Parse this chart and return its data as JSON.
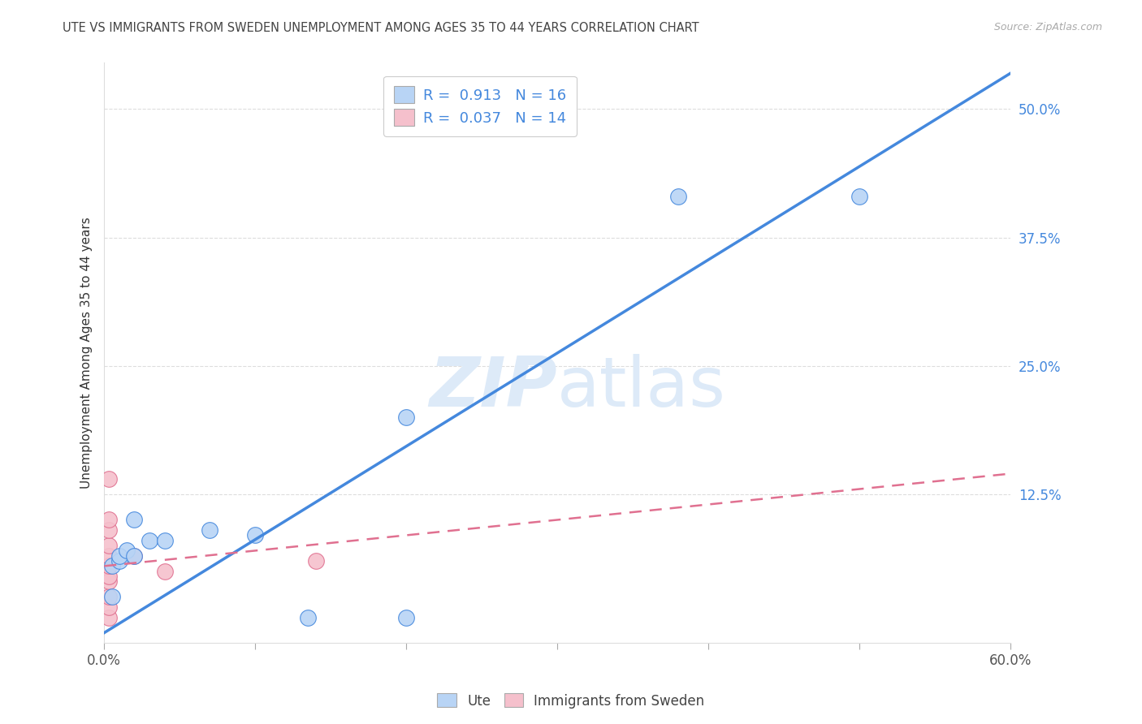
{
  "title": "UTE VS IMMIGRANTS FROM SWEDEN UNEMPLOYMENT AMONG AGES 35 TO 44 YEARS CORRELATION CHART",
  "source": "Source: ZipAtlas.com",
  "ylabel": "Unemployment Among Ages 35 to 44 years",
  "xmin": 0.0,
  "xmax": 0.6,
  "ymin": -0.02,
  "ymax": 0.545,
  "yticks": [
    0.0,
    0.125,
    0.25,
    0.375,
    0.5
  ],
  "ytick_labels": [
    "",
    "12.5%",
    "25.0%",
    "37.5%",
    "50.0%"
  ],
  "xticks": [
    0.0,
    0.1,
    0.2,
    0.3,
    0.4,
    0.5,
    0.6
  ],
  "blue_R": "0.913",
  "blue_N": "16",
  "pink_R": "0.037",
  "pink_N": "14",
  "blue_color": "#b8d4f5",
  "blue_line_color": "#4488dd",
  "pink_color": "#f5c0cc",
  "pink_line_color": "#e07090",
  "watermark_color": "#ddeaf8",
  "legend_label_blue": "Ute",
  "legend_label_pink": "Immigrants from Sweden",
  "blue_scatter_x": [
    0.005,
    0.005,
    0.01,
    0.01,
    0.015,
    0.02,
    0.02,
    0.03,
    0.04,
    0.07,
    0.1,
    0.135,
    0.2,
    0.2,
    0.38,
    0.5
  ],
  "blue_scatter_y": [
    0.025,
    0.055,
    0.06,
    0.065,
    0.07,
    0.065,
    0.1,
    0.08,
    0.08,
    0.09,
    0.085,
    0.005,
    0.005,
    0.2,
    0.415,
    0.415
  ],
  "pink_scatter_x": [
    0.003,
    0.003,
    0.003,
    0.003,
    0.003,
    0.003,
    0.003,
    0.003,
    0.003,
    0.003,
    0.003,
    0.02,
    0.04,
    0.14
  ],
  "pink_scatter_y": [
    0.005,
    0.015,
    0.025,
    0.04,
    0.045,
    0.055,
    0.065,
    0.075,
    0.09,
    0.1,
    0.14,
    0.065,
    0.05,
    0.06
  ],
  "blue_line_x": [
    0.0,
    0.6
  ],
  "blue_line_y": [
    -0.01,
    0.535
  ],
  "pink_line_x": [
    0.0,
    0.6
  ],
  "pink_line_y": [
    0.055,
    0.145
  ],
  "marker_size": 200
}
